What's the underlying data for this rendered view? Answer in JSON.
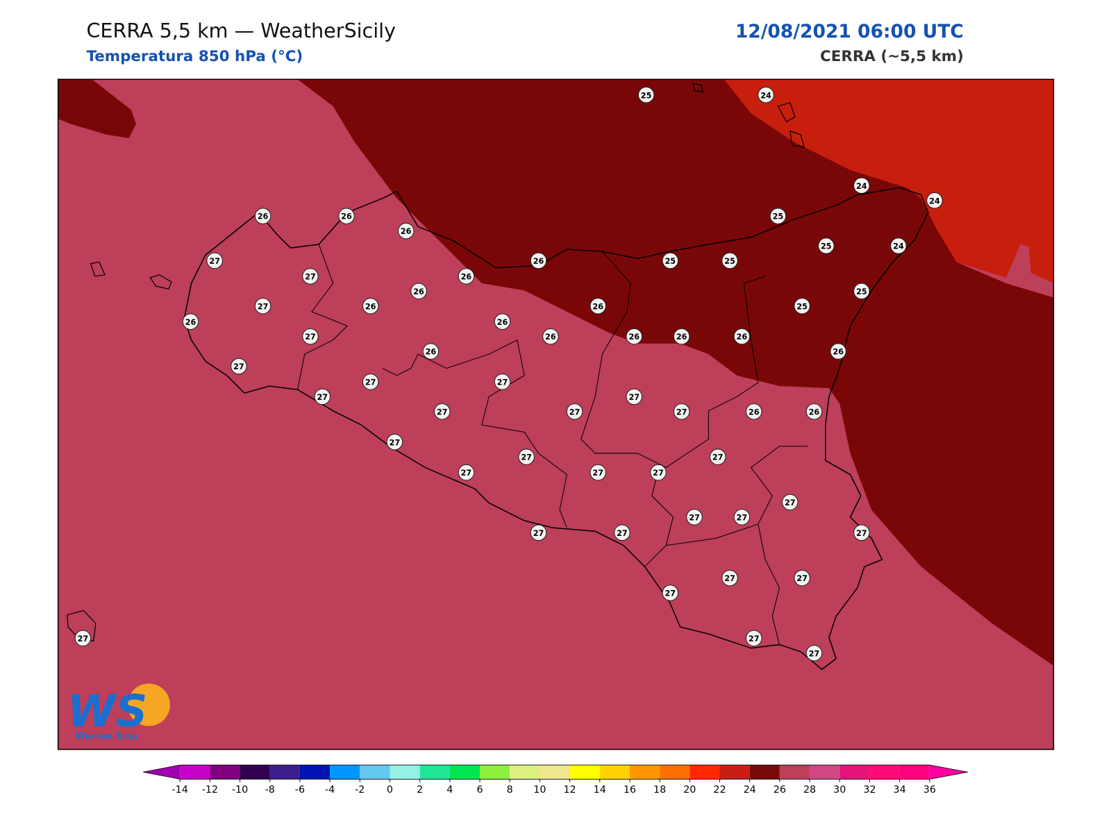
{
  "header": {
    "title": "CERRA 5,5 km — WeatherSicily",
    "subtitle": "Temperatura 850 hPa (°C)",
    "datetime": "12/08/2021 06:00 UTC",
    "model": "CERRA (~5,5 km)"
  },
  "map": {
    "stations": {
      "values": [
        25,
        24,
        24,
        24,
        26,
        26,
        26,
        25,
        27,
        26,
        25,
        25,
        25,
        24,
        27,
        26,
        26,
        25,
        27,
        26,
        26,
        25,
        26,
        26,
        27,
        26,
        26,
        26,
        26,
        26,
        26,
        27,
        27,
        27,
        27,
        27,
        27,
        27,
        27,
        26,
        26,
        27,
        27,
        27,
        27,
        27,
        27,
        27,
        27,
        27,
        27,
        27,
        27,
        27,
        27,
        27,
        27,
        27,
        27
      ]
    }
  },
  "colorbar": {
    "ticks": [
      -14,
      -12,
      -10,
      -8,
      -6,
      -4,
      -2,
      0,
      2,
      4,
      6,
      8,
      10,
      12,
      14,
      16,
      18,
      20,
      22,
      24,
      26,
      28,
      30,
      32,
      34,
      36
    ],
    "colors": [
      "#c800c8",
      "#800080",
      "#300050",
      "#3c1e8c",
      "#0014b4",
      "#0096ff",
      "#64c8f0",
      "#96f0e6",
      "#1ee696",
      "#00e650",
      "#8cf03c",
      "#dcf082",
      "#f0e68c",
      "#ffff00",
      "#ffd200",
      "#ff9600",
      "#ff6e00",
      "#ff2800",
      "#c81e14",
      "#780a0a",
      "#bd3f59",
      "#d24682",
      "#e61478",
      "#ff0a78",
      "#ff007f"
    ],
    "under_color": "#a000b0",
    "over_color": "#ff00a0"
  },
  "logo": {
    "mark": "WS",
    "text": "Weather Sicily"
  }
}
